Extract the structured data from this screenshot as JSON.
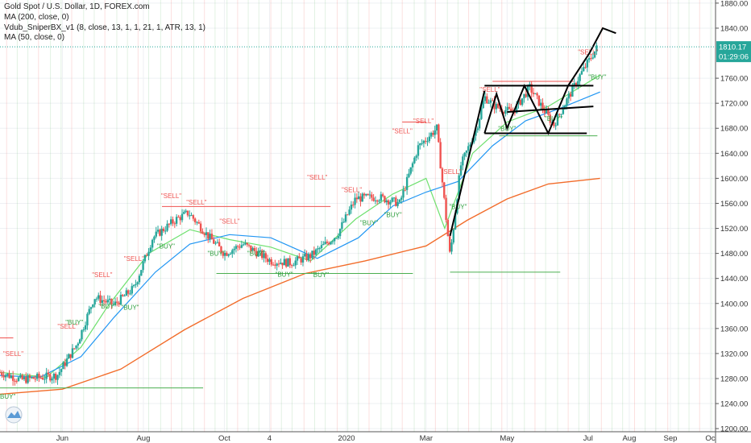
{
  "legend": {
    "title": "Gold Spot / U.S. Dollar, 1D, FOREX.com",
    "ma200": "MA (200, close, 0)",
    "sniper": "Vdub_SniperBX_v1 (8, close, 13, 1, 1, 21, 1, ATR, 13, 1)",
    "ma50": "MA (50, close, 0)"
  },
  "price_tag": {
    "value": "1810.17",
    "countdown": "01:29:06"
  },
  "colors": {
    "up": "#26a69a",
    "down": "#ef5350",
    "ma200": "#f26c2a",
    "ma50": "#2196f3",
    "sniper": "#6ee06e",
    "price_tag": "#26a69a",
    "sell_text": "#ef5350",
    "buy_text": "#2e9e3e",
    "drawing": "#000000"
  },
  "chart_data": {
    "type": "line",
    "title": "Gold Spot / U.S. Dollar, 1D, FOREX.com",
    "y_range": [
      1195,
      1885
    ],
    "y_ticks": [
      1200,
      1240,
      1280,
      1320,
      1360,
      1400,
      1440,
      1480,
      1520,
      1560,
      1600,
      1640,
      1680,
      1720,
      1760,
      1840,
      1880
    ],
    "x_range": [
      "2019-04-15",
      "2020-10-05"
    ],
    "x_ticks": [
      {
        "label": "Jun",
        "date": "2019-06-01"
      },
      {
        "label": "Aug",
        "date": "2019-08-01"
      },
      {
        "label": "Oct",
        "date": "2019-10-01"
      },
      {
        "label": "4",
        "date": "2019-11-04"
      },
      {
        "label": "2020",
        "date": "2020-01-01"
      },
      {
        "label": "Mar",
        "date": "2020-03-01"
      },
      {
        "label": "May",
        "date": "2020-05-01"
      },
      {
        "label": "Jul",
        "date": "2020-07-01"
      },
      {
        "label": "Aug",
        "date": "2020-08-01"
      },
      {
        "label": "Sep",
        "date": "2020-09-01"
      },
      {
        "label": "Oc",
        "date": "2020-10-01"
      }
    ],
    "series": [
      {
        "name": "MA (200, close, 0)",
        "x": [
          "2019-04-15",
          "2019-06-01",
          "2019-07-15",
          "2019-09-01",
          "2019-10-15",
          "2019-12-01",
          "2020-01-15",
          "2020-03-01",
          "2020-04-01",
          "2020-05-01",
          "2020-06-01",
          "2020-07-10"
        ],
        "y": [
          1255,
          1263,
          1295,
          1358,
          1408,
          1448,
          1468,
          1492,
          1533,
          1567,
          1591,
          1600
        ]
      },
      {
        "name": "MA (50, close, 0)",
        "x": [
          "2019-04-15",
          "2019-05-15",
          "2019-06-15",
          "2019-07-10",
          "2019-08-10",
          "2019-09-05",
          "2019-10-05",
          "2019-11-05",
          "2019-12-10",
          "2020-01-10",
          "2020-02-05",
          "2020-03-01",
          "2020-03-25",
          "2020-04-20",
          "2020-05-15",
          "2020-06-10",
          "2020-07-10"
        ],
        "y": [
          1285,
          1282,
          1315,
          1378,
          1450,
          1495,
          1510,
          1505,
          1472,
          1505,
          1556,
          1578,
          1595,
          1652,
          1692,
          1712,
          1738
        ]
      },
      {
        "name": "Vdub_SniperBX_v1",
        "x": [
          "2019-04-15",
          "2019-05-20",
          "2019-06-15",
          "2019-07-05",
          "2019-08-05",
          "2019-09-05",
          "2019-10-05",
          "2019-11-05",
          "2019-12-05",
          "2020-01-08",
          "2020-02-05",
          "2020-03-01",
          "2020-03-15",
          "2020-04-05",
          "2020-05-01",
          "2020-06-01",
          "2020-07-10"
        ],
        "y": [
          1290,
          1282,
          1330,
          1395,
          1480,
          1518,
          1502,
          1490,
          1468,
          1535,
          1575,
          1600,
          1520,
          1640,
          1690,
          1715,
          1765
        ]
      },
      {
        "name": "price",
        "x": [
          "2019-04-15",
          "2019-05-01",
          "2019-05-28",
          "2019-06-12",
          "2019-06-25",
          "2019-07-10",
          "2019-07-25",
          "2019-08-08",
          "2019-08-26",
          "2019-09-04",
          "2019-09-20",
          "2019-10-01",
          "2019-10-15",
          "2019-11-05",
          "2019-11-20",
          "2019-12-05",
          "2019-12-25",
          "2020-01-08",
          "2020-01-25",
          "2020-02-10",
          "2020-02-24",
          "2020-03-09",
          "2020-03-19",
          "2020-03-27",
          "2020-04-08",
          "2020-04-14",
          "2020-04-22",
          "2020-05-05",
          "2020-05-18",
          "2020-06-05",
          "2020-06-25",
          "2020-07-08"
        ],
        "y": [
          1290,
          1278,
          1285,
          1335,
          1410,
          1398,
          1425,
          1505,
          1535,
          1545,
          1505,
          1480,
          1495,
          1468,
          1465,
          1476,
          1510,
          1568,
          1570,
          1560,
          1650,
          1680,
          1475,
          1620,
          1680,
          1730,
          1715,
          1705,
          1745,
          1685,
          1765,
          1810
        ]
      }
    ],
    "levels": [
      {
        "label": "SELL",
        "y": 1555
      },
      {
        "label": "SELL",
        "y": 1690
      },
      {
        "label": "BUY",
        "y": 1448
      },
      {
        "label": "BUY",
        "y": 1265
      }
    ],
    "annotations": [
      "SELL",
      "BUY"
    ]
  }
}
